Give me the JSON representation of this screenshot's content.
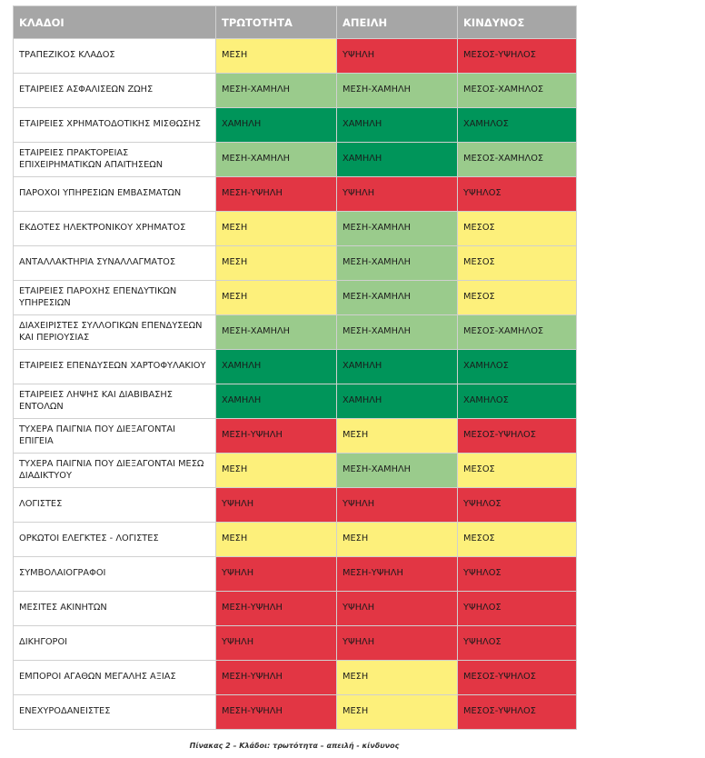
{
  "colors": {
    "header": "#a6a6a6",
    "low": "#00955a",
    "medium_low": "#9acb8c",
    "medium": "#fdf07b",
    "high": "#e23644"
  },
  "table": {
    "headers": [
      "ΚΛΑΔΟΙ",
      "ΤΡΩΤΟΤΗΤΑ",
      "ΑΠΕΙΛΗ",
      "ΚΙΝΔΥΝΟΣ"
    ],
    "rows": [
      {
        "sector": "ΤΡΑΠΕΖΙΚΟΣ ΚΛΑΔΟΣ",
        "cells": [
          {
            "text": "ΜΕΣΗ",
            "level": "medium"
          },
          {
            "text": "ΥΨΗΛΗ",
            "level": "high"
          },
          {
            "text": "ΜΕΣΟΣ-ΥΨΗΛΟΣ",
            "level": "high"
          }
        ]
      },
      {
        "sector": "ΕΤΑΙΡΕΙΕΣ ΑΣΦΑΛΙΣΕΩΝ ΖΩΗΣ",
        "cells": [
          {
            "text": "ΜΕΣΗ-ΧΑΜΗΛΗ",
            "level": "medium_low"
          },
          {
            "text": "ΜΕΣΗ-ΧΑΜΗΛΗ",
            "level": "medium_low"
          },
          {
            "text": "ΜΕΣΟΣ-ΧΑΜΗΛΟΣ",
            "level": "medium_low"
          }
        ]
      },
      {
        "sector": "ΕΤΑΙΡΕΙΕΣ ΧΡΗΜΑΤΟΔΟΤΙΚΗΣ ΜΙΣΘΩΣΗΣ",
        "cells": [
          {
            "text": "ΧΑΜΗΛΗ",
            "level": "low"
          },
          {
            "text": "ΧΑΜΗΛΗ",
            "level": "low"
          },
          {
            "text": "ΧΑΜΗΛΟΣ",
            "level": "low"
          }
        ]
      },
      {
        "sector": "ΕΤΑΙΡΕΙΕΣ ΠΡΑΚΤΟΡΕΙΑΣ ΕΠΙΧΕΙΡΗΜΑΤΙΚΩΝ ΑΠΑΙΤΗΣΕΩΝ",
        "cells": [
          {
            "text": "ΜΕΣΗ-ΧΑΜΗΛΗ",
            "level": "medium_low"
          },
          {
            "text": "ΧΑΜΗΛΗ",
            "level": "low"
          },
          {
            "text": "ΜΕΣΟΣ-ΧΑΜΗΛΟΣ",
            "level": "medium_low"
          }
        ]
      },
      {
        "sector": "ΠΑΡΟΧΟΙ ΥΠΗΡΕΣΙΩΝ ΕΜΒΑΣΜΑΤΩΝ",
        "cells": [
          {
            "text": "ΜΕΣΗ-ΥΨΗΛΗ",
            "level": "high"
          },
          {
            "text": "ΥΨΗΛΗ",
            "level": "high"
          },
          {
            "text": "ΥΨΗΛΟΣ",
            "level": "high"
          }
        ]
      },
      {
        "sector": "ΕΚΔΟΤΕΣ ΗΛΕΚΤΡΟΝΙΚΟΥ ΧΡΗΜΑΤΟΣ",
        "cells": [
          {
            "text": "ΜΕΣΗ",
            "level": "medium"
          },
          {
            "text": "ΜΕΣΗ-ΧΑΜΗΛΗ",
            "level": "medium_low"
          },
          {
            "text": "ΜΕΣΟΣ",
            "level": "medium"
          }
        ]
      },
      {
        "sector": "ΑΝΤΑΛΛΑΚΤΗΡΙΑ ΣΥΝΑΛΛΑΓΜΑΤΟΣ",
        "cells": [
          {
            "text": "ΜΕΣΗ",
            "level": "medium"
          },
          {
            "text": "ΜΕΣΗ-ΧΑΜΗΛΗ",
            "level": "medium_low"
          },
          {
            "text": "ΜΕΣΟΣ",
            "level": "medium"
          }
        ]
      },
      {
        "sector": " ΕΤΑΙΡΕΙΕΣ ΠΑΡΟΧΗΣ ΕΠΕΝΔΥΤΙΚΩΝ ΥΠΗΡΕΣΙΩΝ",
        "cells": [
          {
            "text": "ΜΕΣΗ",
            "level": "medium"
          },
          {
            "text": "ΜΕΣΗ-ΧΑΜΗΛΗ",
            "level": "medium_low"
          },
          {
            "text": "ΜΕΣΟΣ",
            "level": "medium"
          }
        ]
      },
      {
        "sector": "ΔΙΑΧΕΙΡΙΣΤΕΣ ΣΥΛΛΟΓΙΚΩΝ ΕΠΕΝΔΥΣΕΩΝ ΚΑΙ ΠΕΡΙΟΥΣΙΑΣ",
        "cells": [
          {
            "text": "ΜΕΣΗ-ΧΑΜΗΛΗ",
            "level": "medium_low"
          },
          {
            "text": "ΜΕΣΗ-ΧΑΜΗΛΗ",
            "level": "medium_low"
          },
          {
            "text": "ΜΕΣΟΣ-ΧΑΜΗΛΟΣ",
            "level": "medium_low"
          }
        ]
      },
      {
        "sector": "ΕΤΑΙΡΕΙΕΣ ΕΠΕΝΔΥΣΕΩΝ ΧΑΡΤΟΦΥΛΑΚΙΟΥ",
        "cells": [
          {
            "text": "ΧΑΜΗΛΗ",
            "level": "low"
          },
          {
            "text": "ΧΑΜΗΛΗ",
            "level": "low"
          },
          {
            "text": "ΧΑΜΗΛΟΣ",
            "level": "low"
          }
        ]
      },
      {
        "sector": "ΕΤΑΙΡΕΙΕΣ ΛΗΨΗΣ ΚΑΙ ΔΙΑΒΙΒΑΣΗΣ ΕΝΤΟΛΩΝ",
        "cells": [
          {
            "text": "ΧΑΜΗΛΗ",
            "level": "low"
          },
          {
            "text": "ΧΑΜΗΛΗ",
            "level": "low"
          },
          {
            "text": "ΧΑΜΗΛΟΣ",
            "level": "low"
          }
        ]
      },
      {
        "sector": "ΤΥΧΕΡΑ ΠΑΙΓΝΙΑ ΠΟΥ ΔΙΕΞΑΓΟΝΤΑΙ ΕΠΙΓΕΙΑ",
        "cells": [
          {
            "text": "ΜΕΣΗ-ΥΨΗΛΗ",
            "level": "high"
          },
          {
            "text": "ΜΕΣΗ",
            "level": "medium"
          },
          {
            "text": "ΜΕΣΟΣ-ΥΨΗΛΟΣ",
            "level": "high"
          }
        ]
      },
      {
        "sector": "ΤΥΧΕΡΑ ΠΑΙΓΝΙΑ ΠΟΥ ΔΙΕΞΑΓΟΝΤΑΙ ΜΕΣΩ ΔΙΑΔΙΚΤΥΟΥ",
        "cells": [
          {
            "text": "ΜΕΣΗ",
            "level": "medium"
          },
          {
            "text": "ΜΕΣΗ-ΧΑΜΗΛΗ",
            "level": "medium_low"
          },
          {
            "text": "ΜΕΣΟΣ",
            "level": "medium"
          }
        ]
      },
      {
        "sector": "ΛΟΓΙΣΤΕΣ",
        "cells": [
          {
            "text": "ΥΨΗΛΗ",
            "level": "high"
          },
          {
            "text": "ΥΨΗΛΗ",
            "level": "high"
          },
          {
            "text": "ΥΨΗΛΟΣ",
            "level": "high"
          }
        ]
      },
      {
        "sector": "ΟΡΚΩΤΟΙ ΕΛΕΓΚΤΕΣ - ΛΟΓΙΣΤΕΣ",
        "cells": [
          {
            "text": "ΜΕΣΗ",
            "level": "medium"
          },
          {
            "text": "ΜΕΣΗ",
            "level": "medium"
          },
          {
            "text": "ΜΕΣΟΣ",
            "level": "medium"
          }
        ]
      },
      {
        "sector": "ΣΥΜΒΟΛΑΙΟΓΡΑΦΟΙ",
        "cells": [
          {
            "text": "ΥΨΗΛΗ",
            "level": "high"
          },
          {
            "text": "ΜΕΣΗ-ΥΨΗΛΗ",
            "level": "high"
          },
          {
            "text": "ΥΨΗΛΟΣ",
            "level": "high"
          }
        ]
      },
      {
        "sector": "ΜΕΣΙΤΕΣ ΑΚΙΝΗΤΩΝ",
        "cells": [
          {
            "text": "ΜΕΣΗ-ΥΨΗΛΗ",
            "level": "high"
          },
          {
            "text": "ΥΨΗΛΗ",
            "level": "high"
          },
          {
            "text": "ΥΨΗΛΟΣ",
            "level": "high"
          }
        ]
      },
      {
        "sector": "ΔΙΚΗΓΟΡΟΙ",
        "cells": [
          {
            "text": "ΥΨΗΛΗ",
            "level": "high"
          },
          {
            "text": "ΥΨΗΛΗ",
            "level": "high"
          },
          {
            "text": "ΥΨΗΛΟΣ",
            "level": "high"
          }
        ]
      },
      {
        "sector": "ΕΜΠΟΡΟΙ ΑΓΑΘΩΝ ΜΕΓΑΛΗΣ ΑΞΙΑΣ",
        "cells": [
          {
            "text": "ΜΕΣΗ-ΥΨΗΛΗ",
            "level": "high"
          },
          {
            "text": "ΜΕΣΗ",
            "level": "medium"
          },
          {
            "text": "ΜΕΣΟΣ-ΥΨΗΛΟΣ",
            "level": "high"
          }
        ]
      },
      {
        "sector": "ΕΝΕΧΥΡΟΔΑΝΕΙΣΤΕΣ",
        "cells": [
          {
            "text": "ΜΕΣΗ-ΥΨΗΛΗ",
            "level": "high"
          },
          {
            "text": "ΜΕΣΗ",
            "level": "medium"
          },
          {
            "text": "ΜΕΣΟΣ-ΥΨΗΛΟΣ",
            "level": "high"
          }
        ]
      }
    ]
  },
  "caption": "Πίνακας 2 – Κλάδοι: τρωτότητα – απειλή - κίνδυνος"
}
